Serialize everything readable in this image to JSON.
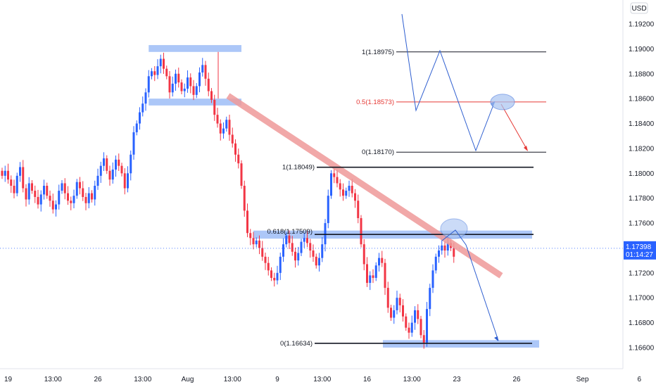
{
  "chart_data": {
    "type": "candlestick",
    "currency": "USD",
    "ylim": [
      1.1655,
      1.1935
    ],
    "y_ticks": [
      "1.19200",
      "1.19000",
      "1.18800",
      "1.18600",
      "1.18400",
      "1.18200",
      "1.18000",
      "1.17800",
      "1.17600",
      "1.17400",
      "1.17200",
      "1.17000",
      "1.16800",
      "1.16600"
    ],
    "x_ticks": [
      {
        "label": "19",
        "bar": 2
      },
      {
        "label": "13:00",
        "bar": 17
      },
      {
        "label": "26",
        "bar": 32
      },
      {
        "label": "13:00",
        "bar": 47
      },
      {
        "label": "Aug",
        "bar": 62
      },
      {
        "label": "13:00",
        "bar": 77
      },
      {
        "label": "9",
        "bar": 92
      },
      {
        "label": "13:00",
        "bar": 107
      },
      {
        "label": "16",
        "bar": 122
      },
      {
        "label": "13:00",
        "bar": 137
      },
      {
        "label": "23",
        "bar": 152
      },
      {
        "label": "26",
        "bar": 172
      },
      {
        "label": "Sep",
        "bar": 194
      },
      {
        "label": "6",
        "bar": 213
      }
    ],
    "current_price": "1.17398",
    "countdown": "01:14:27",
    "colors": {
      "up": "#2962ff",
      "down": "#f23645",
      "trend": "#ef9a9a",
      "zone": "#90b4f5",
      "projection": "#2f5fd0"
    },
    "close_series": [
      1.1798,
      1.1802,
      1.1795,
      1.179,
      1.1784,
      1.1798,
      1.1805,
      1.1788,
      1.1779,
      1.1792,
      1.1786,
      1.1781,
      1.1775,
      1.1783,
      1.179,
      1.1782,
      1.1778,
      1.1771,
      1.1775,
      1.1786,
      1.1792,
      1.1784,
      1.1778,
      1.1776,
      1.1782,
      1.1793,
      1.1788,
      1.1781,
      1.1776,
      1.1784,
      1.1779,
      1.179,
      1.1798,
      1.1806,
      1.1812,
      1.1802,
      1.1795,
      1.1803,
      1.1811,
      1.1806,
      1.18,
      1.1788,
      1.18,
      1.1815,
      1.1833,
      1.184,
      1.1849,
      1.1856,
      1.1865,
      1.1878,
      1.1882,
      1.1879,
      1.1886,
      1.1892,
      1.1884,
      1.1878,
      1.1865,
      1.1872,
      1.188,
      1.1873,
      1.1866,
      1.1868,
      1.1877,
      1.187,
      1.1863,
      1.187,
      1.1881,
      1.1887,
      1.1876,
      1.1866,
      1.1859,
      1.1847,
      1.184,
      1.1832,
      1.1836,
      1.1843,
      1.1831,
      1.1824,
      1.1815,
      1.1808,
      1.179,
      1.177,
      1.1752,
      1.1748,
      1.1743,
      1.1746,
      1.174,
      1.1733,
      1.1728,
      1.1722,
      1.1716,
      1.1714,
      1.172,
      1.1733,
      1.1743,
      1.175,
      1.1744,
      1.1737,
      1.173,
      1.1736,
      1.1745,
      1.1748,
      1.1744,
      1.1738,
      1.1733,
      1.1726,
      1.1732,
      1.1743,
      1.176,
      1.1782,
      1.18,
      1.1797,
      1.1792,
      1.1787,
      1.1782,
      1.1786,
      1.179,
      1.1784,
      1.1778,
      1.1764,
      1.1743,
      1.1727,
      1.1712,
      1.1718,
      1.1716,
      1.1726,
      1.1732,
      1.1728,
      1.1708,
      1.1692,
      1.1684,
      1.169,
      1.17,
      1.1694,
      1.1685,
      1.1676,
      1.1672,
      1.168,
      1.169,
      1.1683,
      1.167,
      1.1664,
      1.1691,
      1.1708,
      1.1722,
      1.1733,
      1.1738,
      1.1742,
      1.1738,
      1.1744,
      1.174,
      1.1733
    ]
  },
  "annotations": {
    "fib_main": [
      {
        "label": "1(1.18049)",
        "price": 1.18049
      },
      {
        "label": "0.618(1.17509)",
        "price": 1.17509
      },
      {
        "label": "0(1.16634)",
        "price": 1.16634
      }
    ],
    "fib_scenario": [
      {
        "label": "1(1.18975)",
        "price": 1.18975,
        "color": "#131722"
      },
      {
        "label": "0.5(1.18573)",
        "price": 1.18573,
        "color": "#e53935"
      },
      {
        "label": "0(1.18170)",
        "price": 1.1817,
        "color": "#131722"
      }
    ]
  }
}
